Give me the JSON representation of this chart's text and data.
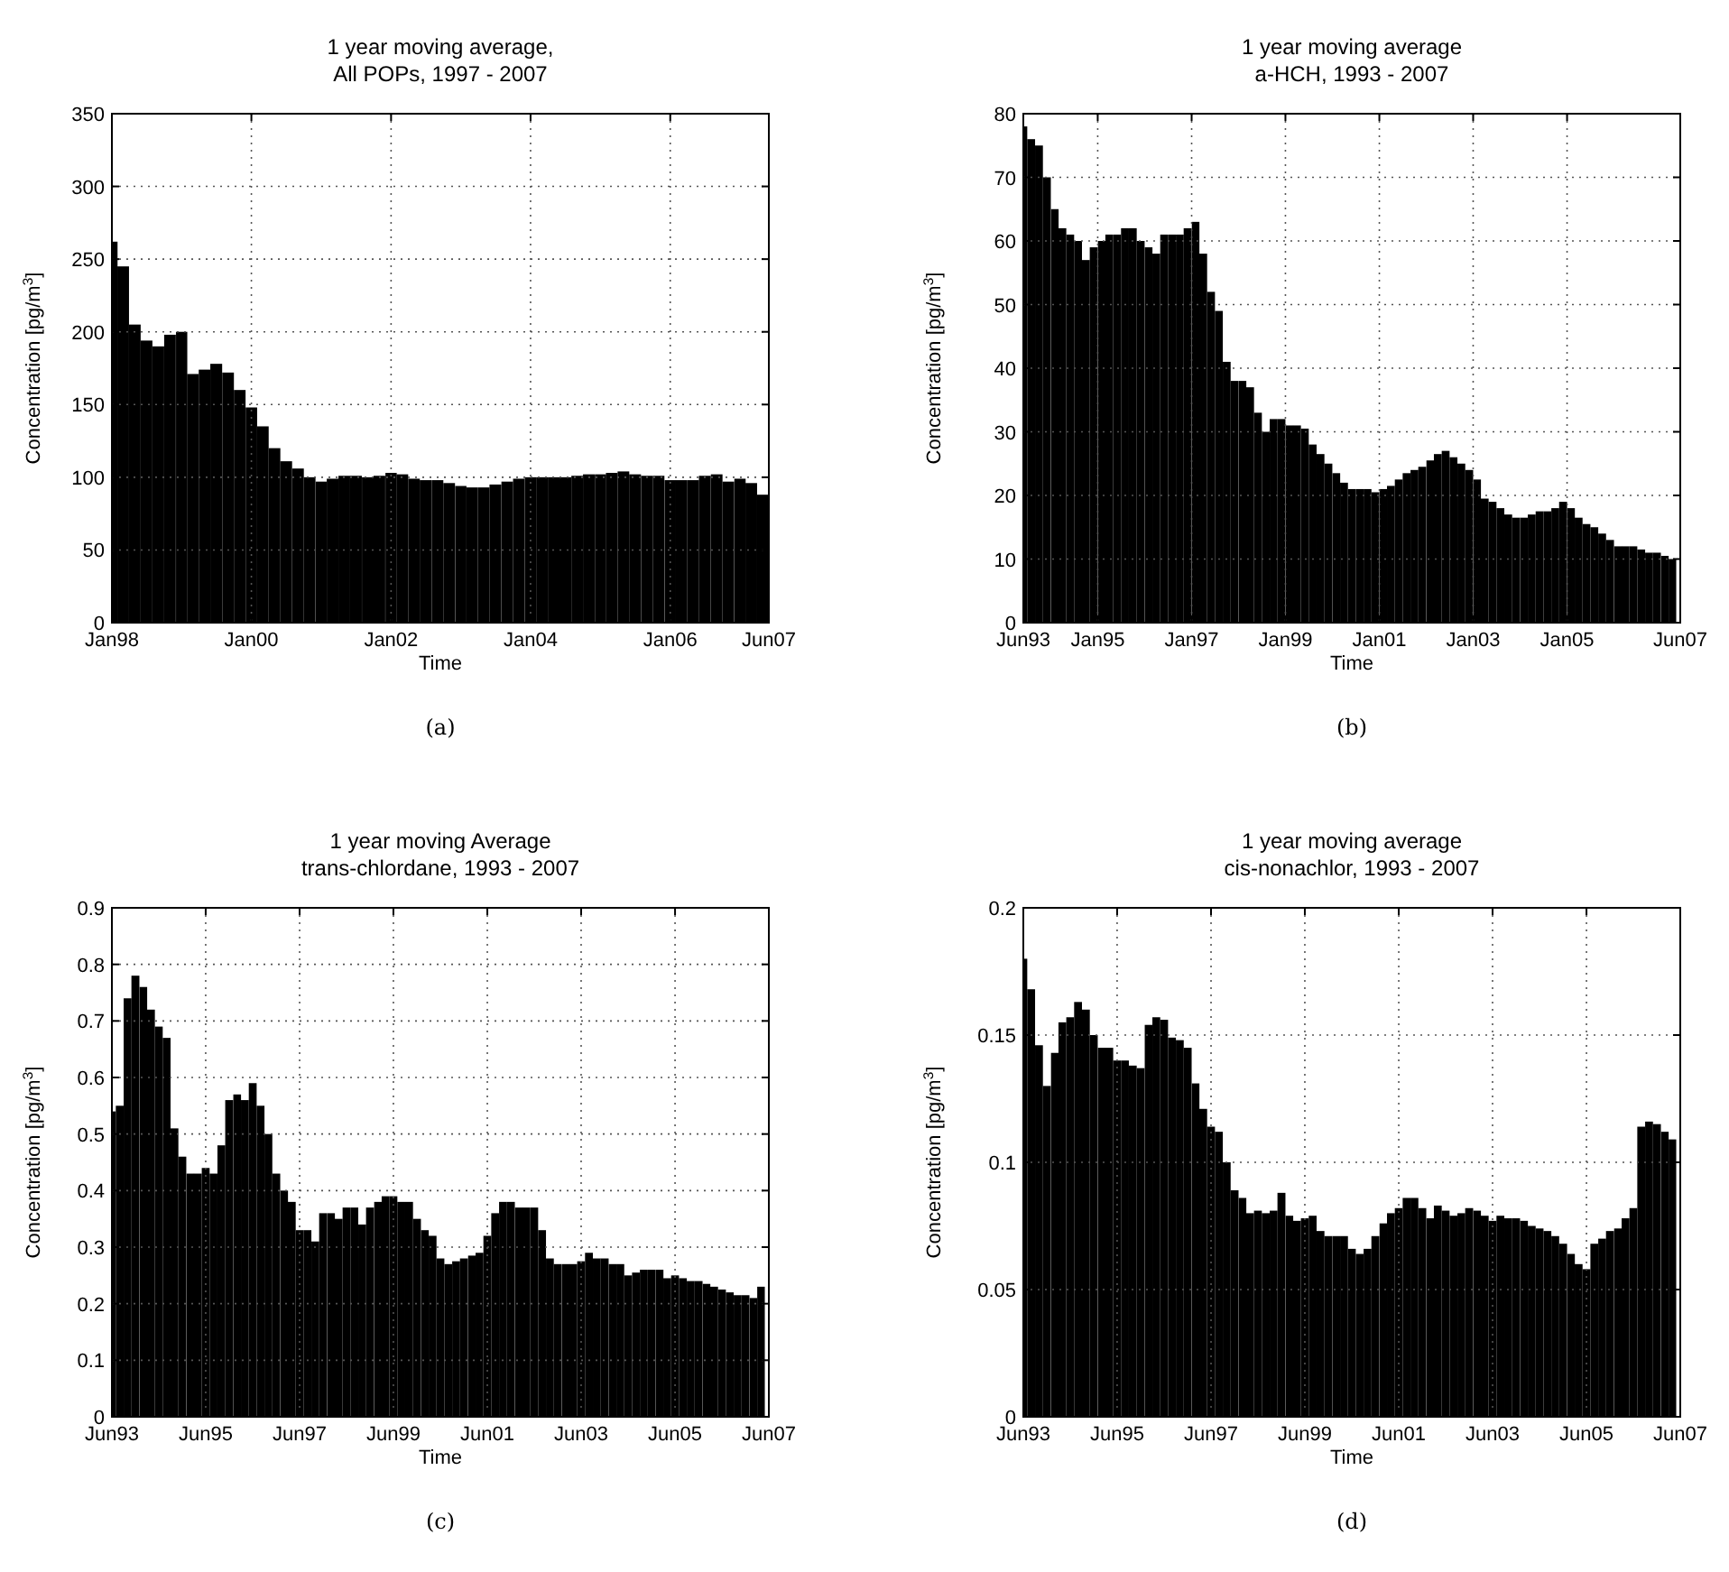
{
  "chart_data": [
    {
      "type": "bar",
      "title": "1 year moving average,",
      "subtitle": "All POPs, 1997 - 2007",
      "xlabel": "Time",
      "ylabel": "Concentration [pg/m$^{3}$]",
      "annotations": [
        "(a)"
      ],
      "color": "#000000",
      "grid": true,
      "x": [
        "1998-01",
        "1998-03",
        "1998-05",
        "1998-07",
        "1998-09",
        "1998-11",
        "1999-01",
        "1999-03",
        "1999-05",
        "1999-07",
        "1999-09",
        "1999-11",
        "2000-01",
        "2000-03",
        "2000-05",
        "2000-07",
        "2000-09",
        "2000-11",
        "2001-01",
        "2001-03",
        "2001-05",
        "2001-07",
        "2001-09",
        "2001-11",
        "2002-01",
        "2002-03",
        "2002-05",
        "2002-07",
        "2002-09",
        "2002-11",
        "2003-01",
        "2003-03",
        "2003-05",
        "2003-07",
        "2003-09",
        "2003-11",
        "2004-01",
        "2004-03",
        "2004-05",
        "2004-07",
        "2004-09",
        "2004-11",
        "2005-01",
        "2005-03",
        "2005-05",
        "2005-07",
        "2005-09",
        "2005-11",
        "2006-01",
        "2006-03",
        "2006-05",
        "2006-07",
        "2006-09",
        "2006-11",
        "2007-01",
        "2007-03",
        "2007-05"
      ],
      "values": [
        262,
        245,
        205,
        194,
        190,
        198,
        200,
        171,
        174,
        178,
        172,
        160,
        148,
        135,
        120,
        111,
        106,
        100,
        97,
        99,
        101,
        101,
        100,
        101,
        103,
        102,
        99,
        98,
        98,
        96,
        94,
        93,
        93,
        95,
        97,
        99,
        100,
        100,
        100,
        100,
        101,
        102,
        102,
        103,
        104,
        102,
        101,
        101,
        98,
        98,
        98,
        101,
        102,
        97,
        99,
        96,
        88
      ],
      "xlim": [
        "1998-01",
        "2007-06"
      ],
      "xticks": [
        {
          "value": "1998-01",
          "label": "Jan98"
        },
        {
          "value": "2000-01",
          "label": "Jan00"
        },
        {
          "value": "2002-01",
          "label": "Jan02"
        },
        {
          "value": "2004-01",
          "label": "Jan04"
        },
        {
          "value": "2006-01",
          "label": "Jan06"
        },
        {
          "value": "2007-06",
          "label": "Jun07"
        }
      ],
      "ylim": [
        0,
        350
      ],
      "yticks": [
        0,
        50,
        100,
        150,
        200,
        250,
        300,
        350
      ]
    },
    {
      "type": "bar",
      "title": "1 year moving average",
      "subtitle": "a-HCH, 1993 - 2007",
      "xlabel": "Time",
      "ylabel": "Concentration [pg/m$^{3}$]",
      "annotations": [
        "(b)"
      ],
      "color": "#000000",
      "grid": true,
      "x": [
        "1993-06",
        "1993-08",
        "1993-10",
        "1993-12",
        "1994-02",
        "1994-04",
        "1994-06",
        "1994-08",
        "1994-10",
        "1994-12",
        "1995-02",
        "1995-04",
        "1995-06",
        "1995-08",
        "1995-10",
        "1995-12",
        "1996-02",
        "1996-04",
        "1996-06",
        "1996-08",
        "1996-10",
        "1996-12",
        "1997-02",
        "1997-04",
        "1997-06",
        "1997-08",
        "1997-10",
        "1997-12",
        "1998-02",
        "1998-04",
        "1998-06",
        "1998-08",
        "1998-10",
        "1998-12",
        "1999-02",
        "1999-04",
        "1999-06",
        "1999-08",
        "1999-10",
        "1999-12",
        "2000-02",
        "2000-04",
        "2000-06",
        "2000-08",
        "2000-10",
        "2000-12",
        "2001-02",
        "2001-04",
        "2001-06",
        "2001-08",
        "2001-10",
        "2001-12",
        "2002-02",
        "2002-04",
        "2002-06",
        "2002-08",
        "2002-10",
        "2002-12",
        "2003-02",
        "2003-04",
        "2003-06",
        "2003-08",
        "2003-10",
        "2003-12",
        "2004-02",
        "2004-04",
        "2004-06",
        "2004-08",
        "2004-10",
        "2004-12",
        "2005-02",
        "2005-04",
        "2005-06",
        "2005-08",
        "2005-10",
        "2005-12",
        "2006-02",
        "2006-04",
        "2006-06",
        "2006-08",
        "2006-10",
        "2006-12",
        "2007-02",
        "2007-04"
      ],
      "values": [
        78,
        76,
        75,
        70,
        65,
        62,
        61,
        60,
        57,
        59,
        60,
        61,
        61,
        62,
        62,
        60,
        59,
        58,
        61,
        61,
        61,
        62,
        63,
        58,
        52,
        49,
        41,
        38,
        38,
        37,
        33,
        30,
        32,
        32,
        31,
        31,
        30.5,
        28,
        26.5,
        25,
        23.5,
        22,
        21,
        21,
        21,
        20.5,
        21,
        21.5,
        22.5,
        23.5,
        24,
        24.5,
        25.5,
        26.5,
        27,
        26,
        25,
        24,
        22.5,
        19.5,
        19,
        18,
        17,
        16.5,
        16.5,
        17,
        17.5,
        17.5,
        18,
        19,
        18,
        16.5,
        15.5,
        15,
        14,
        13,
        12,
        12,
        12,
        11.5,
        11,
        11,
        10.5,
        10
      ],
      "xlim": [
        "1993-06",
        "2007-06"
      ],
      "xticks": [
        {
          "value": "1993-06",
          "label": "Jun93"
        },
        {
          "value": "1995-01",
          "label": "Jan95"
        },
        {
          "value": "1997-01",
          "label": "Jan97"
        },
        {
          "value": "1999-01",
          "label": "Jan99"
        },
        {
          "value": "2001-01",
          "label": "Jan01"
        },
        {
          "value": "2003-01",
          "label": "Jan03"
        },
        {
          "value": "2005-01",
          "label": "Jan05"
        },
        {
          "value": "2007-06",
          "label": "Jun07"
        }
      ],
      "ylim": [
        0,
        80
      ],
      "yticks": [
        0,
        10,
        20,
        30,
        40,
        50,
        60,
        70,
        80
      ]
    },
    {
      "type": "bar",
      "title": "1 year moving Average",
      "subtitle": "trans-chlordane, 1993 - 2007",
      "xlabel": "Time",
      "ylabel": "Concentration [pg/m$^{3}$]",
      "annotations": [
        "(c)"
      ],
      "color": "#000000",
      "grid": true,
      "x": [
        "1993-06",
        "1993-08",
        "1993-10",
        "1993-12",
        "1994-02",
        "1994-04",
        "1994-06",
        "1994-08",
        "1994-10",
        "1994-12",
        "1995-02",
        "1995-04",
        "1995-06",
        "1995-08",
        "1995-10",
        "1995-12",
        "1996-02",
        "1996-04",
        "1996-06",
        "1996-08",
        "1996-10",
        "1996-12",
        "1997-02",
        "1997-04",
        "1997-06",
        "1997-08",
        "1997-10",
        "1997-12",
        "1998-02",
        "1998-04",
        "1998-06",
        "1998-08",
        "1998-10",
        "1998-12",
        "1999-02",
        "1999-04",
        "1999-06",
        "1999-08",
        "1999-10",
        "1999-12",
        "2000-02",
        "2000-04",
        "2000-06",
        "2000-08",
        "2000-10",
        "2000-12",
        "2001-02",
        "2001-04",
        "2001-06",
        "2001-08",
        "2001-10",
        "2001-12",
        "2002-02",
        "2002-04",
        "2002-06",
        "2002-08",
        "2002-10",
        "2002-12",
        "2003-02",
        "2003-04",
        "2003-06",
        "2003-08",
        "2003-10",
        "2003-12",
        "2004-02",
        "2004-04",
        "2004-06",
        "2004-08",
        "2004-10",
        "2004-12",
        "2005-02",
        "2005-04",
        "2005-06",
        "2005-08",
        "2005-10",
        "2005-12",
        "2006-02",
        "2006-04",
        "2006-06",
        "2006-08",
        "2006-10",
        "2006-12",
        "2007-02",
        "2007-04"
      ],
      "values": [
        0.54,
        0.55,
        0.74,
        0.78,
        0.76,
        0.72,
        0.69,
        0.67,
        0.51,
        0.46,
        0.43,
        0.43,
        0.44,
        0.43,
        0.48,
        0.56,
        0.57,
        0.56,
        0.59,
        0.55,
        0.5,
        0.43,
        0.4,
        0.38,
        0.33,
        0.33,
        0.31,
        0.36,
        0.36,
        0.35,
        0.37,
        0.37,
        0.34,
        0.37,
        0.38,
        0.39,
        0.39,
        0.38,
        0.38,
        0.35,
        0.33,
        0.32,
        0.28,
        0.27,
        0.275,
        0.28,
        0.285,
        0.29,
        0.32,
        0.36,
        0.38,
        0.38,
        0.37,
        0.37,
        0.37,
        0.33,
        0.28,
        0.27,
        0.27,
        0.27,
        0.275,
        0.29,
        0.28,
        0.28,
        0.27,
        0.27,
        0.25,
        0.255,
        0.26,
        0.26,
        0.26,
        0.245,
        0.25,
        0.245,
        0.24,
        0.24,
        0.235,
        0.23,
        0.225,
        0.22,
        0.215,
        0.215,
        0.21,
        0.23
      ],
      "xlim": [
        "1993-06",
        "2007-06"
      ],
      "xticks": [
        {
          "value": "1993-06",
          "label": "Jun93"
        },
        {
          "value": "1995-06",
          "label": "Jun95"
        },
        {
          "value": "1997-06",
          "label": "Jun97"
        },
        {
          "value": "1999-06",
          "label": "Jun99"
        },
        {
          "value": "2001-06",
          "label": "Jun01"
        },
        {
          "value": "2003-06",
          "label": "Jun03"
        },
        {
          "value": "2005-06",
          "label": "Jun05"
        },
        {
          "value": "2007-06",
          "label": "Jun07"
        }
      ],
      "ylim": [
        0,
        0.9
      ],
      "yticks": [
        0,
        0.1,
        0.2,
        0.3,
        0.4,
        0.5,
        0.6,
        0.7,
        0.8,
        0.9
      ]
    },
    {
      "type": "bar",
      "title": "1 year moving average",
      "subtitle": "cis-nonachlor, 1993 - 2007",
      "xlabel": "Time",
      "ylabel": "Concentration [pg/m$^{3}$]",
      "annotations": [
        "(d)"
      ],
      "color": "#000000",
      "grid": true,
      "x": [
        "1993-06",
        "1993-08",
        "1993-10",
        "1993-12",
        "1994-02",
        "1994-04",
        "1994-06",
        "1994-08",
        "1994-10",
        "1994-12",
        "1995-02",
        "1995-04",
        "1995-06",
        "1995-08",
        "1995-10",
        "1995-12",
        "1996-02",
        "1996-04",
        "1996-06",
        "1996-08",
        "1996-10",
        "1996-12",
        "1997-02",
        "1997-04",
        "1997-06",
        "1997-08",
        "1997-10",
        "1997-12",
        "1998-02",
        "1998-04",
        "1998-06",
        "1998-08",
        "1998-10",
        "1998-12",
        "1999-02",
        "1999-04",
        "1999-06",
        "1999-08",
        "1999-10",
        "1999-12",
        "2000-02",
        "2000-04",
        "2000-06",
        "2000-08",
        "2000-10",
        "2000-12",
        "2001-02",
        "2001-04",
        "2001-06",
        "2001-08",
        "2001-10",
        "2001-12",
        "2002-02",
        "2002-04",
        "2002-06",
        "2002-08",
        "2002-10",
        "2002-12",
        "2003-02",
        "2003-04",
        "2003-06",
        "2003-08",
        "2003-10",
        "2003-12",
        "2004-02",
        "2004-04",
        "2004-06",
        "2004-08",
        "2004-10",
        "2004-12",
        "2005-02",
        "2005-04",
        "2005-06",
        "2005-08",
        "2005-10",
        "2005-12",
        "2006-02",
        "2006-04",
        "2006-06",
        "2006-08",
        "2006-10",
        "2006-12",
        "2007-02",
        "2007-04"
      ],
      "values": [
        0.18,
        0.168,
        0.146,
        0.13,
        0.143,
        0.155,
        0.157,
        0.163,
        0.16,
        0.15,
        0.145,
        0.145,
        0.14,
        0.14,
        0.138,
        0.137,
        0.154,
        0.157,
        0.156,
        0.149,
        0.148,
        0.145,
        0.131,
        0.121,
        0.114,
        0.112,
        0.1,
        0.089,
        0.086,
        0.08,
        0.081,
        0.08,
        0.081,
        0.088,
        0.079,
        0.077,
        0.078,
        0.079,
        0.073,
        0.071,
        0.071,
        0.071,
        0.066,
        0.064,
        0.066,
        0.071,
        0.076,
        0.08,
        0.082,
        0.086,
        0.086,
        0.082,
        0.078,
        0.083,
        0.081,
        0.079,
        0.08,
        0.082,
        0.081,
        0.079,
        0.077,
        0.079,
        0.078,
        0.078,
        0.077,
        0.075,
        0.074,
        0.073,
        0.071,
        0.068,
        0.064,
        0.06,
        0.058,
        0.068,
        0.07,
        0.073,
        0.074,
        0.078,
        0.082,
        0.114,
        0.116,
        0.115,
        0.112,
        0.109
      ],
      "xlim": [
        "1993-06",
        "2007-06"
      ],
      "xticks": [
        {
          "value": "1993-06",
          "label": "Jun93"
        },
        {
          "value": "1995-06",
          "label": "Jun95"
        },
        {
          "value": "1997-06",
          "label": "Jun97"
        },
        {
          "value": "1999-06",
          "label": "Jun99"
        },
        {
          "value": "2001-06",
          "label": "Jun01"
        },
        {
          "value": "2003-06",
          "label": "Jun03"
        },
        {
          "value": "2005-06",
          "label": "Jun05"
        },
        {
          "value": "2007-06",
          "label": "Jun07"
        }
      ],
      "ylim": [
        0,
        0.2
      ],
      "yticks": [
        0,
        0.05,
        0.1,
        0.15,
        0.2
      ]
    }
  ]
}
